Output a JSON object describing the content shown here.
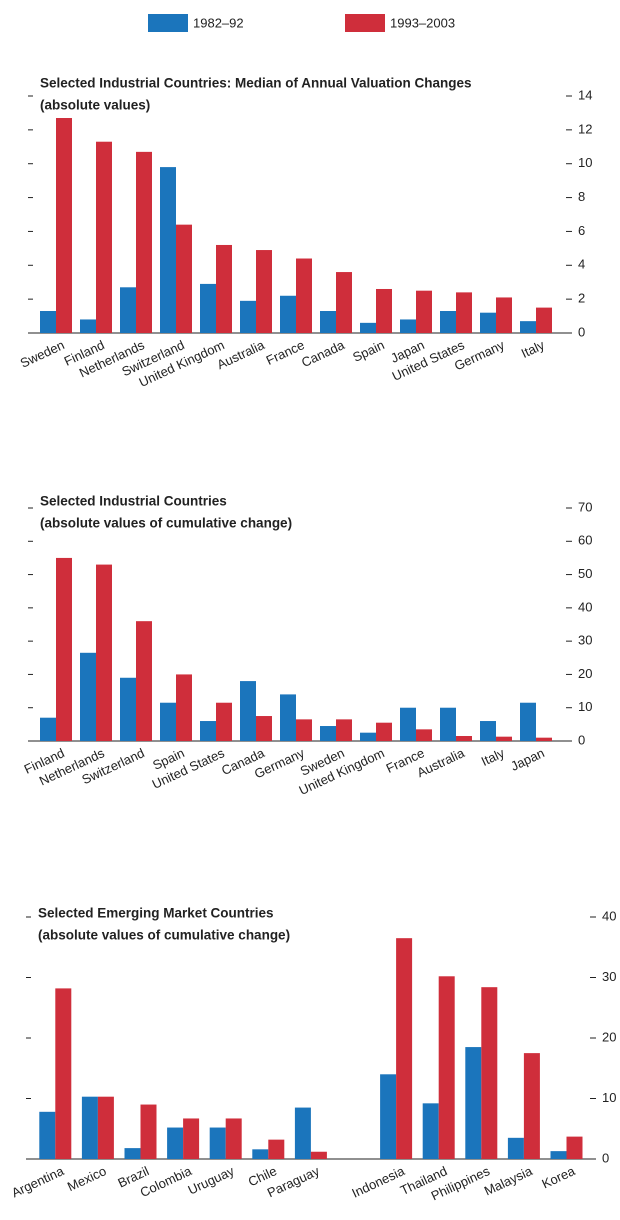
{
  "chart_data": [
    {
      "type": "bar",
      "title": "Selected Industrial Countries: Median of Annual Valuation Changes",
      "subtitle": "(absolute values)",
      "categories": [
        "Sweden",
        "Finland",
        "Netherlands",
        "Switzerland",
        "United Kingdom",
        "Australia",
        "France",
        "Canada",
        "Spain",
        "Japan",
        "United States",
        "Germany",
        "Italy"
      ],
      "series": [
        {
          "name": "1982–92",
          "color": "#1b75bc",
          "values": [
            1.3,
            0.8,
            2.7,
            9.8,
            2.9,
            1.9,
            2.2,
            1.3,
            0.6,
            0.8,
            1.3,
            1.2,
            0.7
          ]
        },
        {
          "name": "1993–2003",
          "color": "#cf2e3b",
          "values": [
            12.7,
            11.3,
            10.7,
            6.4,
            5.2,
            4.9,
            4.4,
            3.6,
            2.6,
            2.5,
            2.4,
            2.1,
            1.5
          ]
        }
      ],
      "ylim": [
        0,
        14
      ],
      "yticks": [
        0,
        2,
        4,
        6,
        8,
        10,
        12,
        14
      ]
    },
    {
      "type": "bar",
      "title": "Selected Industrial Countries",
      "subtitle": "(absolute values of cumulative change)",
      "categories": [
        "Finland",
        "Netherlands",
        "Switzerland",
        "Spain",
        "United States",
        "Canada",
        "Germany",
        "Sweden",
        "United Kingdom",
        "France",
        "Australia",
        "Italy",
        "Japan"
      ],
      "series": [
        {
          "color": "#1b75bc",
          "values": [
            7,
            26.5,
            19,
            11.5,
            6,
            18,
            14,
            4.5,
            2.5,
            10,
            10,
            6,
            11.5
          ]
        },
        {
          "color": "#cf2e3b",
          "values": [
            55,
            53,
            36,
            20,
            11.5,
            7.5,
            6.5,
            6.5,
            5.5,
            3.5,
            1.5,
            1.3,
            1
          ]
        }
      ],
      "ylim": [
        0,
        70
      ],
      "yticks": [
        0,
        10,
        20,
        30,
        40,
        50,
        60,
        70
      ]
    },
    {
      "type": "bar",
      "title": "Selected Emerging Market Countries",
      "subtitle": "(absolute values of cumulative change)",
      "categories": [
        "Argentina",
        "Mexico",
        "Brazil",
        "Colombia",
        "Uruguay",
        "Chile",
        "Paraguay",
        null,
        "Indonesia",
        "Thailand",
        "Philippines",
        "Malaysia",
        "Korea"
      ],
      "series": [
        {
          "color": "#1b75bc",
          "values": [
            7.8,
            10.3,
            1.8,
            5.2,
            5.2,
            1.6,
            8.5,
            null,
            14,
            9.2,
            18.5,
            3.5,
            1.3
          ]
        },
        {
          "color": "#cf2e3b",
          "values": [
            28.2,
            10.3,
            9,
            6.7,
            6.7,
            3.2,
            1.2,
            null,
            36.5,
            30.2,
            28.4,
            17.5,
            3.7
          ]
        }
      ],
      "ylim": [
        0,
        40
      ],
      "yticks": [
        0,
        10,
        20,
        30,
        40
      ]
    }
  ]
}
